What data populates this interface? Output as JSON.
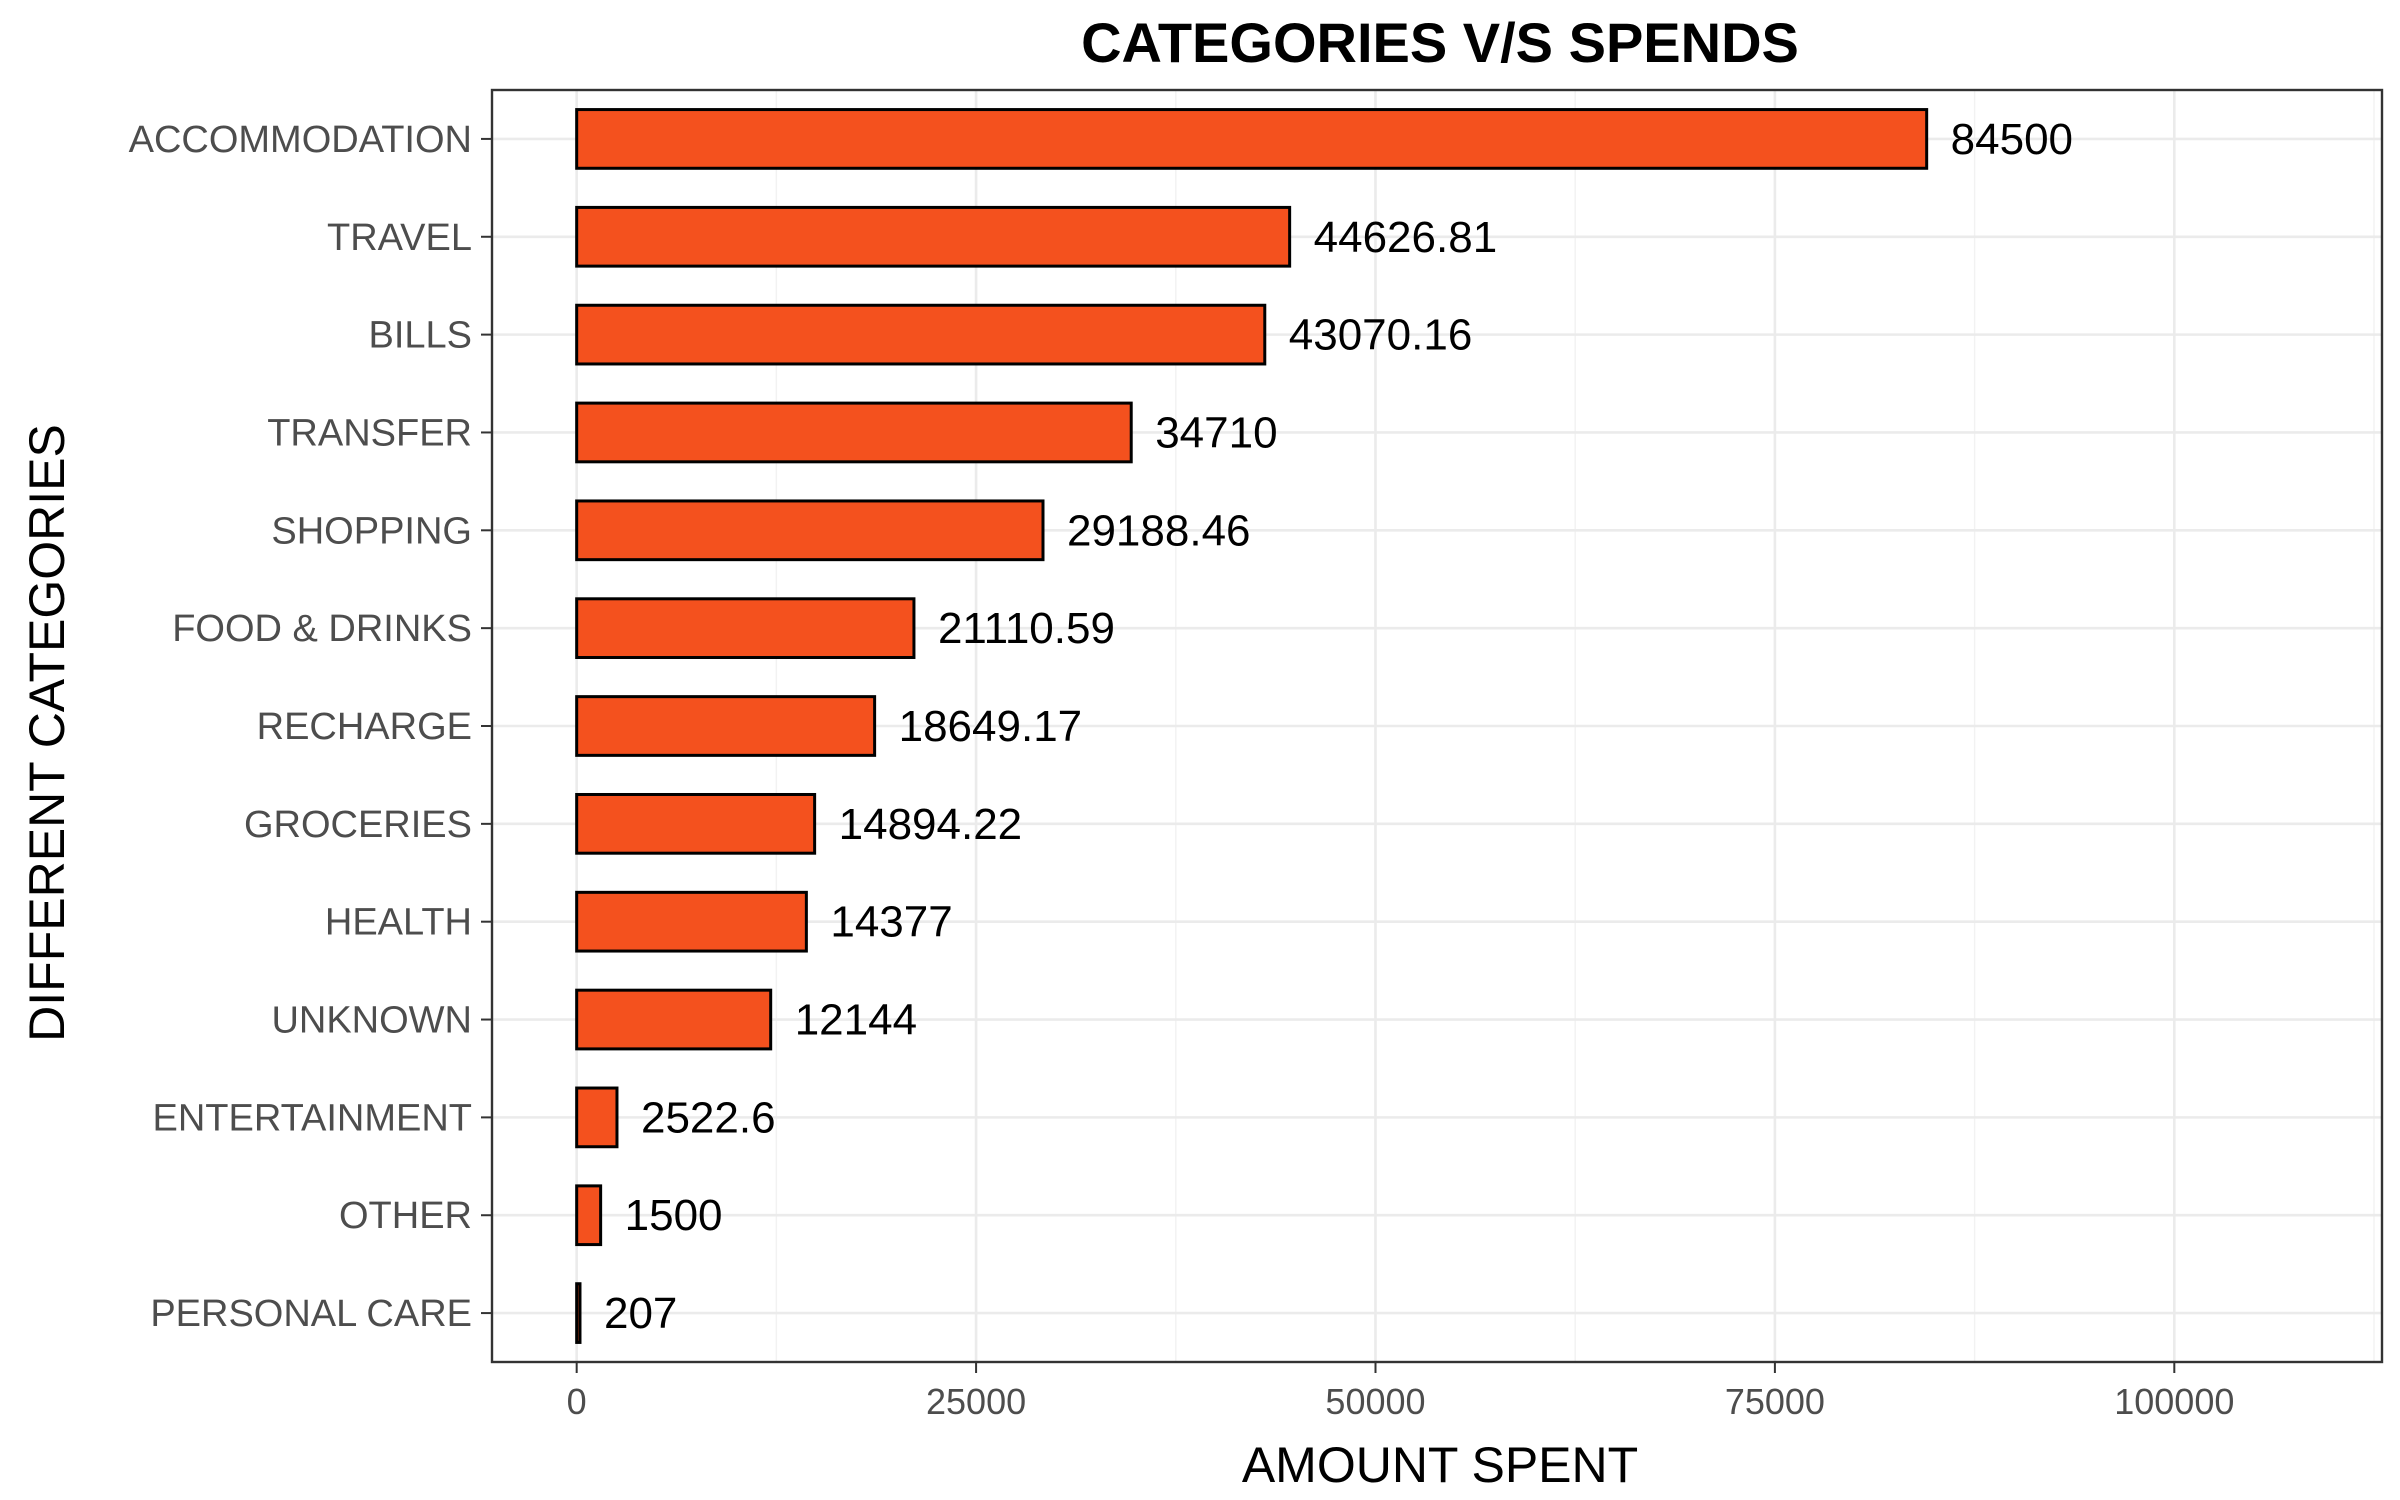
{
  "chart_data": {
    "type": "bar",
    "orientation": "horizontal",
    "title": "CATEGORIES V/S SPENDS",
    "xlabel": "AMOUNT SPENT",
    "ylabel": "DIFFERENT CATEGORIES",
    "categories": [
      "ACCOMMODATION",
      "TRAVEL",
      "BILLS",
      "TRANSFER",
      "SHOPPING",
      "FOOD & DRINKS",
      "RECHARGE",
      "GROCERIES",
      "HEALTH",
      "UNKNOWN",
      "ENTERTAINMENT",
      "OTHER",
      "PERSONAL CARE"
    ],
    "values": [
      84500,
      44626.81,
      43070.16,
      34710,
      29188.46,
      21110.59,
      18649.17,
      14894.22,
      14377,
      12144,
      2522.6,
      1500,
      207
    ],
    "value_labels": [
      "84500",
      "44626.81",
      "43070.16",
      "34710",
      "29188.46",
      "21110.59",
      "18649.17",
      "14894.22",
      "14377",
      "12144",
      "2522.6",
      "1500",
      "207"
    ],
    "xlim": [
      -5300,
      113000
    ],
    "xticks": [
      0,
      25000,
      50000,
      75000,
      100000
    ],
    "xtick_labels": [
      "0",
      "25000",
      "50000",
      "75000",
      "100000"
    ],
    "bar_color": "#f4511e",
    "bar_outline": "#000000",
    "grid": true,
    "legend": "none"
  }
}
